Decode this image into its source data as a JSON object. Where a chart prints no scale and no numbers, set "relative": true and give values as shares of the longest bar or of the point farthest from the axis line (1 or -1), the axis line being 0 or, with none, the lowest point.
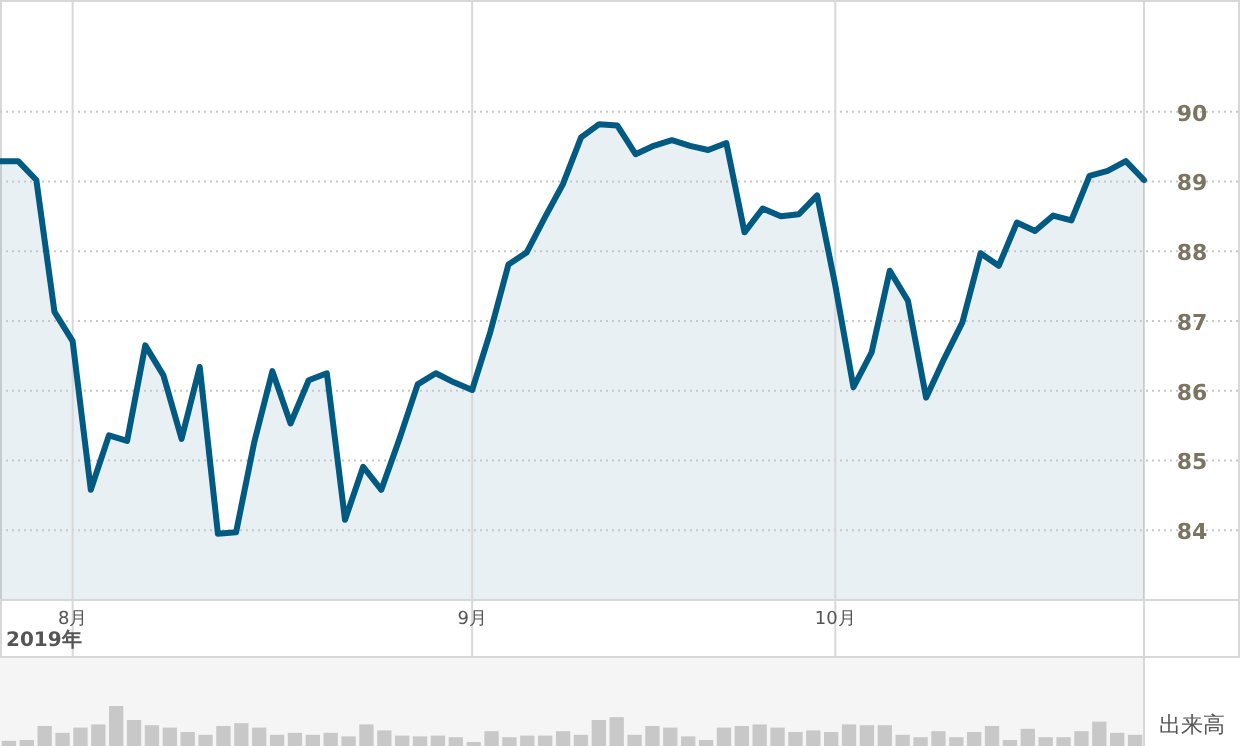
{
  "chart_data": [
    {
      "type": "area",
      "xlabel": "2019年",
      "color": "#005a82",
      "categories": [
        null,
        null,
        null,
        null,
        "8月",
        null,
        null,
        null,
        null,
        null,
        null,
        null,
        null,
        null,
        null,
        null,
        null,
        null,
        null,
        null,
        null,
        null,
        null,
        null,
        null,
        null,
        "9月",
        null,
        null,
        null,
        null,
        null,
        null,
        null,
        null,
        null,
        null,
        null,
        null,
        null,
        null,
        null,
        null,
        null,
        null,
        null,
        "10月",
        null,
        null,
        null,
        null,
        null,
        null,
        null,
        null,
        null,
        null,
        null,
        null,
        null,
        null,
        null,
        null,
        null
      ],
      "values": [
        89.29,
        89.29,
        89.02,
        87.13,
        86.71,
        84.58,
        85.36,
        85.28,
        86.65,
        86.22,
        85.31,
        86.34,
        83.95,
        83.97,
        85.26,
        86.28,
        85.53,
        86.15,
        86.25,
        84.15,
        84.91,
        84.58,
        85.31,
        86.09,
        86.25,
        86.12,
        86.01,
        86.84,
        87.81,
        87.98,
        88.48,
        88.96,
        89.63,
        89.82,
        89.8,
        89.39,
        89.51,
        89.59,
        89.51,
        89.45,
        89.55,
        88.27,
        88.61,
        88.5,
        88.53,
        88.8,
        87.51,
        86.05,
        86.55,
        87.72,
        87.29,
        85.9,
        86.46,
        86.98,
        87.97,
        87.79,
        88.41,
        88.29,
        88.51,
        88.44,
        89.08,
        89.15,
        89.29,
        89.02
      ],
      "ylim": [
        83.0,
        91.6
      ],
      "yticks": [
        84,
        85,
        86,
        87,
        88,
        89,
        90
      ],
      "grid": true
    },
    {
      "type": "bar",
      "relative": true,
      "ylabel": "出来高",
      "color": "#c8c8c8",
      "categories": [
        null,
        null,
        null,
        null,
        null,
        null,
        null,
        null,
        null,
        null,
        null,
        null,
        null,
        null,
        null,
        null,
        null,
        null,
        null,
        null,
        null,
        null,
        null,
        null,
        null,
        null,
        null,
        null,
        null,
        null,
        null,
        null,
        null,
        null,
        null,
        null,
        null,
        null,
        null,
        null,
        null,
        null,
        null,
        null,
        null,
        null,
        null,
        null,
        null,
        null,
        null,
        null,
        null,
        null,
        null,
        null,
        null,
        null,
        null,
        null,
        null,
        null,
        null,
        null
      ],
      "values": [
        0.13,
        0.15,
        0.5,
        0.33,
        0.46,
        0.54,
        1,
        0.65,
        0.52,
        0.46,
        0.35,
        0.28,
        0.5,
        0.57,
        0.46,
        0.28,
        0.33,
        0.28,
        0.33,
        0.24,
        0.54,
        0.39,
        0.26,
        0.24,
        0.26,
        0.22,
        0.1,
        0.37,
        0.22,
        0.26,
        0.26,
        0.37,
        0.28,
        0.65,
        0.72,
        0.28,
        0.5,
        0.46,
        0.24,
        0.15,
        0.46,
        0.5,
        0.54,
        0.46,
        0.35,
        0.39,
        0.35,
        0.54,
        0.52,
        0.52,
        0.28,
        0.22,
        0.37,
        0.22,
        0.35,
        0.5,
        0.15,
        0.43,
        0.22,
        0.22,
        0.37,
        0.61,
        0.33,
        0.28
      ]
    }
  ]
}
